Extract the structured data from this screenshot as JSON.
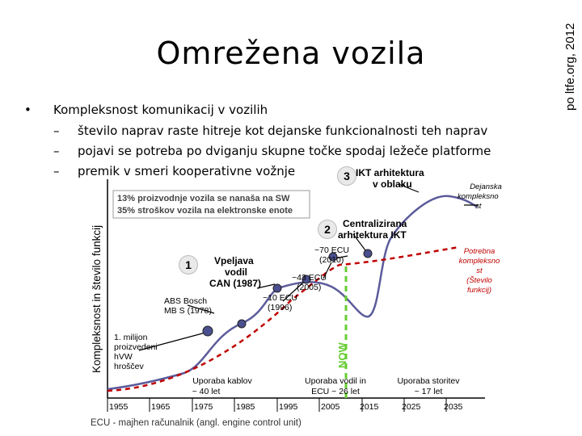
{
  "slide": {
    "title": "Omrežena vozila",
    "side_credit": "po ltfe.org, 2012",
    "bullet": "Kompleksnost komunikacij v vozilih",
    "sub_bullets": [
      "število naprav raste hitreje kot dejanske funkcionalnosti teh naprav",
      "pojavi se potreba po dviganju skupne točke spodaj ležeče platforme",
      "premik v smeri kooperativne vožnje"
    ],
    "bullet_marker": "•",
    "dash": "–"
  },
  "diagram": {
    "y_axis_label": "Kompleksnost in število funkcij",
    "info_line1": "13% proizvodnje vozila se nanaša na SW",
    "info_line2": "35% stroškov vozila na elektronske enote",
    "stage1": {
      "num": "1",
      "l1": "Vpeljava",
      "l2": "vodil",
      "l3": "CAN (1987)"
    },
    "stage2": {
      "num": "2",
      "l1": "Centralizirana",
      "l2": "arhitektura IKT"
    },
    "stage3": {
      "num": "3",
      "l1": "IKT arhitektura",
      "l2": "v oblaku"
    },
    "abs_l1": "ABS Bosch",
    "abs_l2": "MB S (1978)",
    "first_l1": "1. milijon",
    "first_l2": "proizvedeni",
    "first_l3": "hVW",
    "first_l4": "hroščev",
    "ecu10_l1": "~10 ECU",
    "ecu10_l2": "(1996)",
    "ecu43_l1": "~43 ECU",
    "ecu43_l2": "(2005)",
    "ecu70_l1": "~70 ECU",
    "ecu70_l2": "(2010)",
    "now": "NOW",
    "actual_l1": "Dejanska",
    "actual_l2": "kompleksno",
    "actual_l3": "st",
    "needed_l1": "Potrebna",
    "needed_l2": "kompleksno",
    "needed_l3": "st",
    "needed_l4": "(Število",
    "needed_l5": "funkcij)",
    "era1_l1": "Uporaba kablov",
    "era1_l2": "~ 40 let",
    "era2_l1": "Uporaba vodil in",
    "era2_l2": "ECU ~ 26 let",
    "era3_l1": "Uporaba storitev",
    "era3_l2": "~ 17 let",
    "x_ticks": [
      "1955",
      "1965",
      "1975",
      "1985",
      "1995",
      "2005",
      "2015",
      "2025",
      "2035"
    ],
    "footnote": "ECU - majhen računalnik (angl. engine control unit)",
    "colors": {
      "curve": "#5b5b9b",
      "node": "#4a4f8f",
      "now": "#66cc33",
      "needed": "#c00000"
    }
  }
}
